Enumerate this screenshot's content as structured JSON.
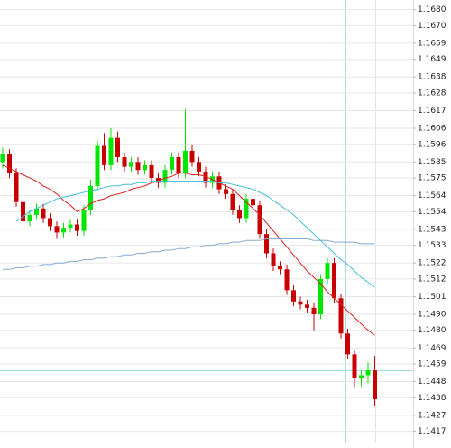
{
  "chart_data": {
    "type": "candlestick",
    "up_color": "#00e600",
    "down_color": "#c80000",
    "ylim": [
      1.141,
      1.1686
    ],
    "yticks": [
      {
        "value": 1.168,
        "label": "1.1680"
      },
      {
        "value": 1.167,
        "label": "1.1670"
      },
      1.1659,
      1.1649,
      1.1638,
      1.1628,
      1.1617,
      1.1606,
      1.1596,
      1.1585,
      1.1575,
      1.1564,
      1.1554,
      1.1543,
      1.1533,
      1.1522,
      1.1512,
      1.1501,
      {
        "value": 1.149,
        "label": "1.1490"
      },
      {
        "value": 1.148,
        "label": "1.1480"
      },
      1.1469,
      1.1459,
      1.1448,
      1.1438,
      1.1427,
      1.1417
    ],
    "grid": true,
    "open": [
      1.1585,
      1.159,
      1.1578,
      1.156,
      1.1548,
      1.1552,
      1.1556,
      1.155,
      1.1545,
      1.1541,
      1.1544,
      1.1546,
      1.1542,
      1.1555,
      1.157,
      1.1595,
      1.1583,
      1.16,
      1.1588,
      1.1582,
      1.1585,
      1.158,
      1.1583,
      1.1575,
      1.1572,
      1.158,
      1.1588,
      1.1578,
      1.1592,
      1.1585,
      1.1579,
      1.1572,
      1.1576,
      1.1568,
      1.1565,
      1.1555,
      1.155,
      1.1562,
      1.1558,
      1.154,
      1.1528,
      1.152,
      1.1518,
      1.1505,
      1.1498,
      1.1496,
      1.1494,
      1.149,
      1.1512,
      1.1522,
      1.15,
      1.1478,
      1.1465,
      1.145,
      1.1452,
      1.1455
    ],
    "high": [
      1.1594,
      1.1593,
      1.1581,
      1.1563,
      1.1555,
      1.1559,
      1.1559,
      1.1553,
      1.1548,
      1.1547,
      1.1549,
      1.1549,
      1.1558,
      1.1574,
      1.1599,
      1.1603,
      1.1606,
      1.1604,
      1.1591,
      1.1588,
      1.1588,
      1.1586,
      1.1586,
      1.1578,
      1.1583,
      1.1591,
      1.1591,
      1.1618,
      1.1596,
      1.1588,
      1.1582,
      1.1579,
      1.1579,
      1.1571,
      1.1568,
      1.1558,
      1.1565,
      1.1574,
      1.1561,
      1.1543,
      1.1531,
      1.1523,
      1.1521,
      1.1508,
      1.1501,
      1.1499,
      1.1497,
      1.1515,
      1.1525,
      1.1525,
      1.1503,
      1.1481,
      1.1468,
      1.1455,
      1.146,
      1.1464
    ],
    "low": [
      1.1581,
      1.1575,
      1.1557,
      1.153,
      1.1545,
      1.1549,
      1.1547,
      1.1542,
      1.1537,
      1.1538,
      1.1541,
      1.1539,
      1.1539,
      1.1552,
      1.1567,
      1.158,
      1.158,
      1.1585,
      1.1579,
      1.1579,
      1.1577,
      1.1577,
      1.1572,
      1.1569,
      1.1569,
      1.1577,
      1.1575,
      1.1575,
      1.1582,
      1.1576,
      1.1569,
      1.1569,
      1.1565,
      1.1562,
      1.1552,
      1.1547,
      1.1547,
      1.1555,
      1.1537,
      1.1525,
      1.1517,
      1.1515,
      1.1502,
      1.1495,
      1.1493,
      1.1491,
      1.148,
      1.1487,
      1.1509,
      1.1497,
      1.1475,
      1.1462,
      1.1444,
      1.1445,
      1.1447,
      1.1433
    ],
    "close": [
      1.159,
      1.1578,
      1.156,
      1.1548,
      1.1552,
      1.1556,
      1.155,
      1.1545,
      1.1541,
      1.1544,
      1.1546,
      1.1542,
      1.1555,
      1.157,
      1.1595,
      1.1583,
      1.16,
      1.1588,
      1.1582,
      1.1585,
      1.158,
      1.1583,
      1.1575,
      1.1572,
      1.158,
      1.1588,
      1.1578,
      1.1592,
      1.1585,
      1.1579,
      1.1572,
      1.1576,
      1.1568,
      1.1565,
      1.1555,
      1.155,
      1.1562,
      1.1558,
      1.154,
      1.1528,
      1.152,
      1.1518,
      1.1505,
      1.1498,
      1.1496,
      1.1494,
      1.149,
      1.1512,
      1.1522,
      1.15,
      1.1478,
      1.1465,
      1.145,
      1.1452,
      1.1455,
      1.1437
    ],
    "series": [
      {
        "color": "#e02020",
        "values": [
          1.1583,
          1.1581,
          1.1579,
          1.1577,
          1.1575,
          1.1573,
          1.157,
          1.1568,
          1.1565,
          1.1561,
          1.1558,
          1.1554,
          1.1556,
          1.1559,
          1.1561,
          1.1562,
          1.1564,
          1.1565,
          1.1566,
          1.1568,
          1.1569,
          1.157,
          1.1572,
          1.1573,
          1.1575,
          1.1576,
          1.1578,
          1.1578,
          1.1577,
          1.1577,
          1.1576,
          1.1574,
          1.1572,
          1.157,
          1.1568,
          1.1564,
          1.156,
          1.1556,
          1.1552,
          1.1547,
          1.1542,
          1.1537,
          1.1532,
          1.1527,
          1.1522,
          1.1517,
          1.1513,
          1.1509,
          1.1504,
          1.15,
          1.1496,
          1.1492,
          1.1488,
          1.1484,
          1.148,
          1.1477
        ]
      },
      {
        "color": "#40c0d8",
        "values": [
          null,
          null,
          1.1548,
          1.1551,
          1.1554,
          1.1556,
          1.1558,
          1.156,
          1.1562,
          1.1563,
          1.1564,
          1.1565,
          1.1566,
          1.1567,
          1.1568,
          1.1569,
          1.157,
          1.157,
          1.1571,
          1.1571,
          1.1572,
          1.1572,
          1.1573,
          1.1573,
          1.1573,
          1.1573,
          1.1573,
          1.1573,
          1.1573,
          1.1573,
          1.1573,
          1.1573,
          1.1572,
          1.1572,
          1.1571,
          1.157,
          1.1569,
          1.1568,
          1.1566,
          1.1564,
          1.1561,
          1.1558,
          1.1555,
          1.1552,
          1.1548,
          1.1544,
          1.154,
          1.1536,
          1.1532,
          1.1528,
          1.1524,
          1.1521,
          1.1517,
          1.1513,
          1.151,
          1.1507
        ]
      },
      {
        "color": "#88aad0",
        "values": [
          1.1518,
          1.1518,
          1.1519,
          1.1519,
          1.152,
          1.152,
          1.1521,
          1.1521,
          1.1522,
          1.1522,
          1.1523,
          1.1523,
          1.1524,
          1.1524,
          1.1525,
          1.1525,
          1.1526,
          1.1526,
          1.1527,
          1.1527,
          1.1528,
          1.1528,
          1.1529,
          1.1529,
          1.153,
          1.153,
          1.1531,
          1.1531,
          1.1532,
          1.1532,
          1.1533,
          1.1533,
          1.1534,
          1.1534,
          1.1535,
          1.1535,
          1.1536,
          1.1536,
          1.1536,
          1.1537,
          1.1537,
          1.1537,
          1.1537,
          1.1537,
          1.1537,
          1.1537,
          1.1536,
          1.1536,
          1.1536,
          1.1535,
          1.1535,
          1.1535,
          1.1535,
          1.1534,
          1.1534,
          1.1534
        ]
      }
    ]
  }
}
